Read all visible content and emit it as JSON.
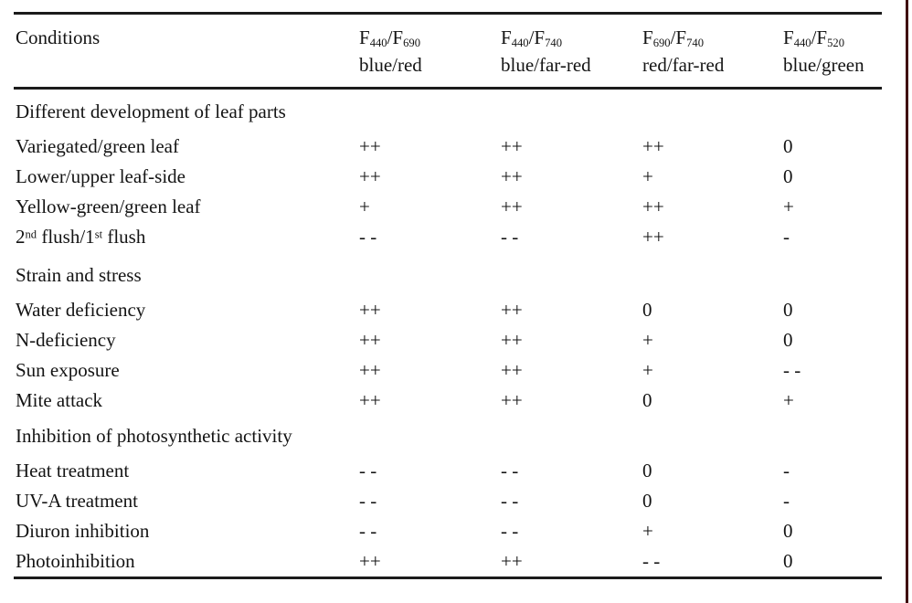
{
  "colors": {
    "rule": "#1b1b1b",
    "text": "#141414",
    "page_edge_line": "#3f0e10",
    "background": "#ffffff"
  },
  "header": {
    "conditions_label": "Conditions",
    "ratio_columns": [
      {
        "base1": "F",
        "sub1": "440",
        "base2": "/F",
        "sub2": "690",
        "subtitle": "blue/red"
      },
      {
        "base1": "F",
        "sub1": "440",
        "base2": "/F",
        "sub2": "740",
        "subtitle": "blue/far-red"
      },
      {
        "base1": "F",
        "sub1": "690",
        "base2": "/F",
        "sub2": "740",
        "subtitle": "red/far-red"
      },
      {
        "base1": "F",
        "sub1": "440",
        "base2": "/F",
        "sub2": "520",
        "subtitle": "blue/green"
      }
    ]
  },
  "sections": [
    {
      "heading": "Different development of leaf parts",
      "rows": [
        {
          "label": "Variegated/green leaf",
          "values": [
            "++",
            "++",
            "++",
            "0"
          ]
        },
        {
          "label": "Lower/upper leaf-side",
          "values": [
            "++",
            "++",
            "+",
            "0"
          ]
        },
        {
          "label": "Yellow-green/green leaf",
          "values": [
            "+",
            "++",
            "++",
            "+"
          ]
        },
        {
          "label_parts": {
            "p1": "2",
            "s1": "nd",
            "p2": " flush/1",
            "s2": "st",
            "p3": " flush"
          },
          "values": [
            "- -",
            "- -",
            "++",
            "-"
          ]
        }
      ]
    },
    {
      "heading": "Strain and stress",
      "rows": [
        {
          "label": "Water deficiency",
          "values": [
            "++",
            "++",
            "0",
            "0"
          ]
        },
        {
          "label": "N-deficiency",
          "values": [
            "++",
            "++",
            "+",
            "0"
          ]
        },
        {
          "label": "Sun exposure",
          "values": [
            "++",
            "++",
            "+",
            "- -"
          ]
        },
        {
          "label": "Mite attack",
          "values": [
            "++",
            "++",
            "0",
            "+"
          ]
        }
      ]
    },
    {
      "heading": "Inhibition of photosynthetic activity",
      "rows": [
        {
          "label": "Heat treatment",
          "values": [
            "- -",
            "- -",
            "0",
            "-"
          ]
        },
        {
          "label": "UV-A treatment",
          "values": [
            "- -",
            "- -",
            "0",
            "-"
          ]
        },
        {
          "label": "Diuron inhibition",
          "values": [
            "- -",
            "- -",
            "+",
            "0"
          ]
        },
        {
          "label": "Photoinhibition",
          "values": [
            "++",
            "++",
            "- -",
            "0"
          ]
        }
      ]
    }
  ]
}
